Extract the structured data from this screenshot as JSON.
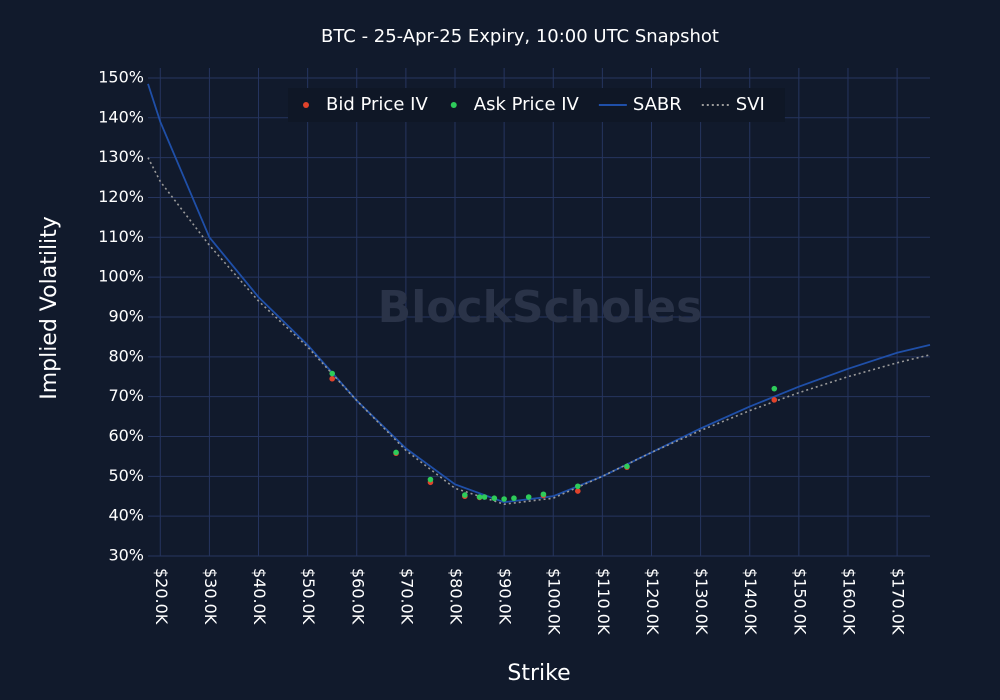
{
  "chart_data": {
    "type": "line",
    "title": "BTC - 25-Apr-25 Expiry, 10:00 UTC Snapshot",
    "x_label": "Strike",
    "y_label": "Implied Volatility",
    "watermark": "BlockScholes",
    "xlim": [
      17500,
      176700
    ],
    "ylim": [
      30,
      152.5
    ],
    "xticks": [
      {
        "value": 20000,
        "label": "$20.0K"
      },
      {
        "value": 30000,
        "label": "$30.0K"
      },
      {
        "value": 40000,
        "label": "$40.0K"
      },
      {
        "value": 50000,
        "label": "$50.0K"
      },
      {
        "value": 60000,
        "label": "$60.0K"
      },
      {
        "value": 70000,
        "label": "$70.0K"
      },
      {
        "value": 80000,
        "label": "$80.0K"
      },
      {
        "value": 90000,
        "label": "$90.0K"
      },
      {
        "value": 100000,
        "label": "$100.0K"
      },
      {
        "value": 110000,
        "label": "$110.0K"
      },
      {
        "value": 120000,
        "label": "$120.0K"
      },
      {
        "value": 130000,
        "label": "$130.0K"
      },
      {
        "value": 140000,
        "label": "$140.0K"
      },
      {
        "value": 150000,
        "label": "$150.0K"
      },
      {
        "value": 160000,
        "label": "$160.0K"
      },
      {
        "value": 170000,
        "label": "$170.0K"
      }
    ],
    "yticks": [
      {
        "value": 30,
        "label": "30%"
      },
      {
        "value": 40,
        "label": "40%"
      },
      {
        "value": 50,
        "label": "50%"
      },
      {
        "value": 60,
        "label": "60%"
      },
      {
        "value": 70,
        "label": "70%"
      },
      {
        "value": 80,
        "label": "80%"
      },
      {
        "value": 90,
        "label": "90%"
      },
      {
        "value": 100,
        "label": "100%"
      },
      {
        "value": 110,
        "label": "110%"
      },
      {
        "value": 120,
        "label": "120%"
      },
      {
        "value": 130,
        "label": "130%"
      },
      {
        "value": 140,
        "label": "140%"
      },
      {
        "value": 150,
        "label": "150%"
      }
    ],
    "grid": true,
    "legend": "top",
    "series": [
      {
        "name": "Bid Price IV",
        "color": "#e0432b",
        "mode": "markers",
        "x": [
          55000,
          68000,
          75000,
          82000,
          85000,
          98000,
          105000,
          115000,
          145000
        ],
        "values": [
          74.5,
          55.8,
          48.5,
          45,
          44.7,
          45.2,
          46.3,
          52.3,
          69.2
        ]
      },
      {
        "name": "Ask Price IV",
        "color": "#2ecc5a",
        "mode": "markers",
        "x": [
          55000,
          68000,
          75000,
          82000,
          85000,
          86000,
          88000,
          90000,
          92000,
          95000,
          98000,
          105000,
          115000,
          145000
        ],
        "values": [
          75.8,
          56,
          49.2,
          45.3,
          44.8,
          44.8,
          44.5,
          44.3,
          44.5,
          44.8,
          45.5,
          47.5,
          52.5,
          72
        ]
      },
      {
        "name": "SABR",
        "color": "#1f4fa8",
        "mode": "line",
        "dash": false,
        "x": [
          17500,
          20000,
          30000,
          40000,
          50000,
          60000,
          70000,
          80000,
          90000,
          100000,
          110000,
          120000,
          130000,
          140000,
          150000,
          160000,
          170000,
          176700
        ],
        "values": [
          148.5,
          139,
          110,
          95,
          83,
          69,
          57,
          48,
          43.5,
          45,
          50,
          56,
          62,
          67.5,
          72.5,
          77,
          81,
          83
        ]
      },
      {
        "name": "SVI",
        "color": "#9a9a9a",
        "mode": "line",
        "dash": true,
        "x": [
          17500,
          20000,
          30000,
          40000,
          50000,
          60000,
          70000,
          80000,
          90000,
          100000,
          110000,
          120000,
          130000,
          140000,
          150000,
          160000,
          170000,
          176700
        ],
        "values": [
          130,
          124,
          108,
          94,
          82.5,
          69,
          56.5,
          47,
          43,
          44.5,
          50,
          56,
          61.5,
          66.5,
          71,
          75,
          78.5,
          80.5
        ]
      }
    ]
  }
}
